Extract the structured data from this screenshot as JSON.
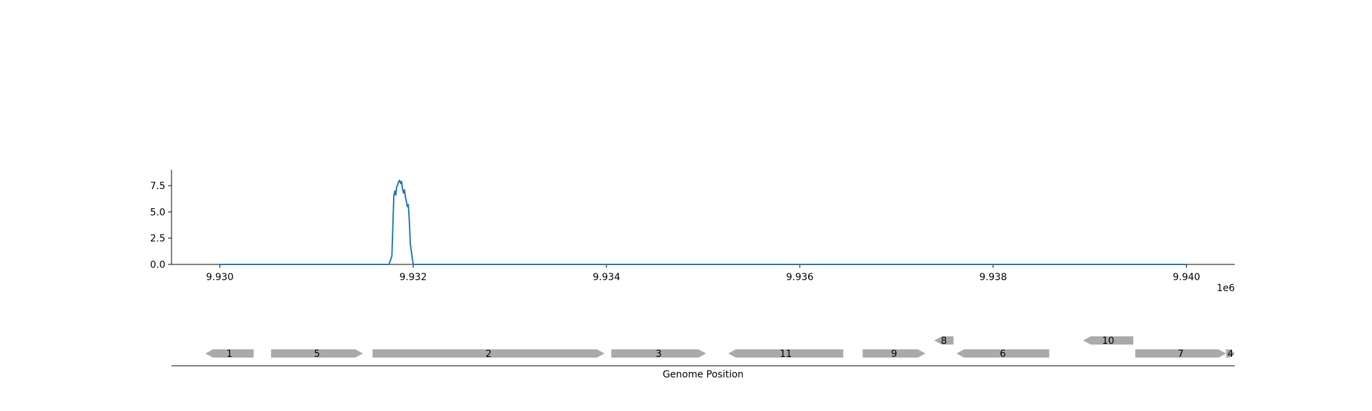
{
  "chart_data": [
    {
      "type": "line",
      "title": "",
      "xlabel": "",
      "ylabel": "",
      "x_offset_label": "1e6",
      "xlim": [
        9.9295,
        9.9405
      ],
      "ylim": [
        0,
        9.0
      ],
      "xticks": [
        9.93,
        9.932,
        9.934,
        9.936,
        9.938,
        9.94
      ],
      "xtick_labels": [
        "9.930",
        "9.932",
        "9.934",
        "9.936",
        "9.938",
        "9.940"
      ],
      "yticks": [
        0.0,
        2.5,
        5.0,
        7.5
      ],
      "ytick_labels": [
        "0.0",
        "2.5",
        "5.0",
        "7.5"
      ],
      "grid": false,
      "series": [
        {
          "color": "#1f77b4",
          "x": [
            9.93,
            9.93175,
            9.93178,
            9.9318,
            9.93181,
            9.93182,
            9.93183,
            9.93184,
            9.93185,
            9.93186,
            9.93187,
            9.93188,
            9.93189,
            9.9319,
            9.93191,
            9.93192,
            9.93193,
            9.93194,
            9.93195,
            9.93196,
            9.93197,
            9.932,
            9.933,
            9.94
          ],
          "y": [
            0.0,
            0.0,
            0.8,
            6.5,
            7.0,
            6.6,
            7.4,
            7.6,
            7.9,
            8.0,
            7.7,
            7.9,
            7.2,
            6.8,
            7.1,
            6.4,
            6.0,
            5.5,
            5.7,
            4.2,
            2.0,
            0.0,
            0.0,
            0.0
          ]
        }
      ]
    },
    {
      "type": "gene-track",
      "xlabel": "Genome Position",
      "colors": {
        "gene": "#aaaaaa",
        "axis": "#000000"
      },
      "genes": [
        {
          "label": "1",
          "start": 9.92985,
          "end": 9.93035,
          "strand": "-",
          "row": 0
        },
        {
          "label": "5",
          "start": 9.93053,
          "end": 9.93148,
          "strand": "+",
          "row": 0
        },
        {
          "label": "2",
          "start": 9.93158,
          "end": 9.93398,
          "strand": "+",
          "row": 0
        },
        {
          "label": "3",
          "start": 9.93405,
          "end": 9.93503,
          "strand": "+",
          "row": 0
        },
        {
          "label": "11",
          "start": 9.93526,
          "end": 9.93645,
          "strand": "-",
          "row": 0
        },
        {
          "label": "9",
          "start": 9.93665,
          "end": 9.9373,
          "strand": "+",
          "row": 0
        },
        {
          "label": "8",
          "start": 9.93739,
          "end": 9.93759,
          "strand": "-",
          "row": 1
        },
        {
          "label": "6",
          "start": 9.93762,
          "end": 9.93858,
          "strand": "-",
          "row": 0
        },
        {
          "label": "10",
          "start": 9.93893,
          "end": 9.93945,
          "strand": "-",
          "row": 1
        },
        {
          "label": "7",
          "start": 9.93947,
          "end": 9.94041,
          "strand": "+",
          "row": 0
        },
        {
          "label": "4",
          "start": 9.94041,
          "end": 9.9405,
          "strand": "+",
          "row": 0
        }
      ]
    }
  ]
}
